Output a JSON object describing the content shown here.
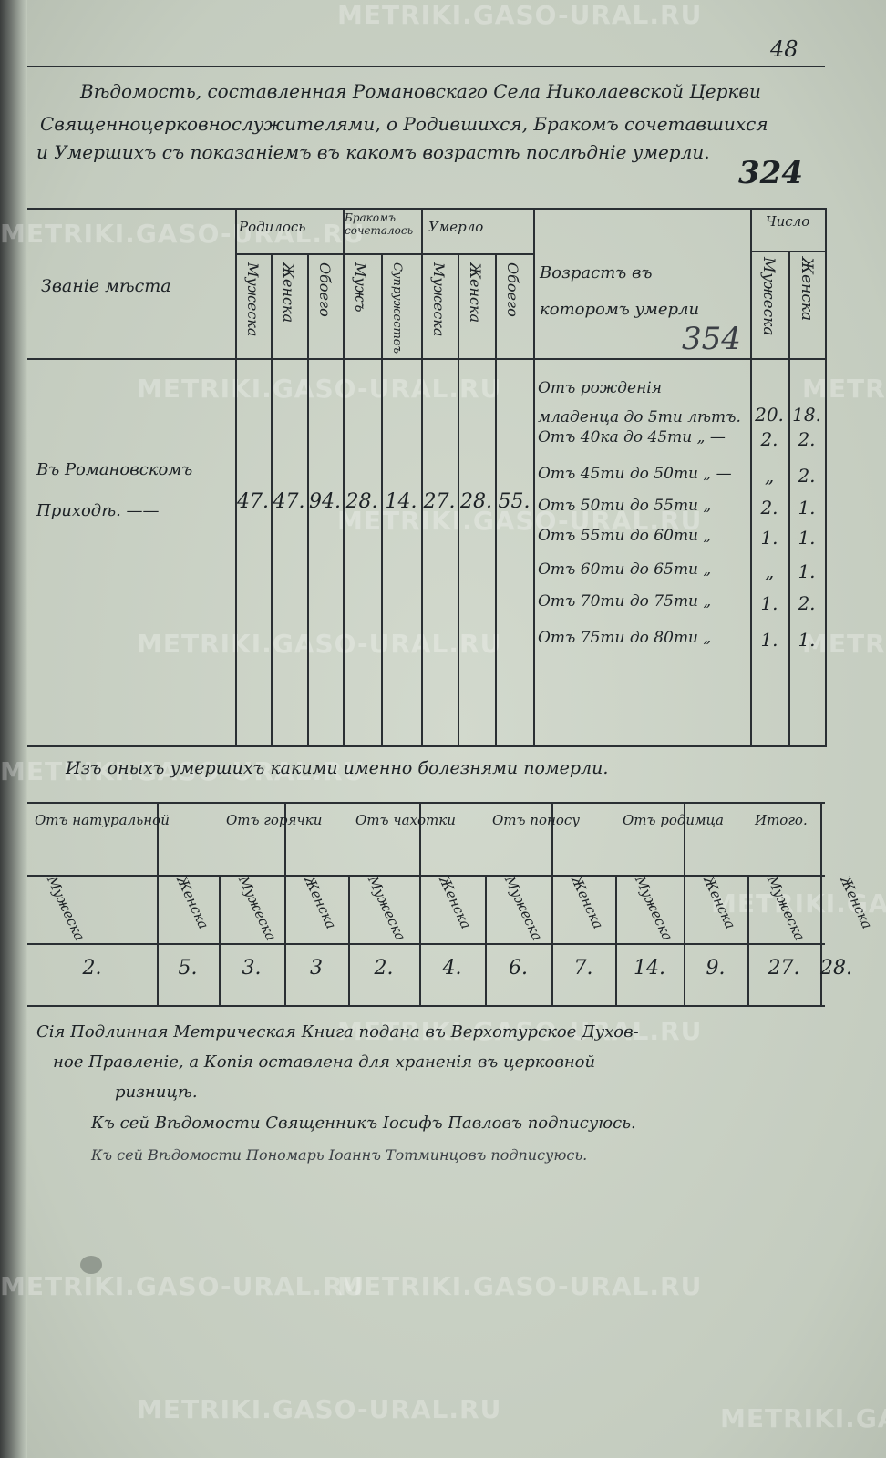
{
  "page_number": "48",
  "annotations": {
    "top": "324",
    "middle": "354"
  },
  "watermark": "METRIKI.GASO-URAL.RU",
  "title_lines": [
    "Вѣдомость, составленная Романовскаго Села Николаевской Церкви",
    "Священноцерковнослужителями, о Родившихся, Бракомъ сочетавшихся",
    "и Умершихъ съ показаніемъ въ какомъ возрастѣ послѣдніе умерли."
  ],
  "table1": {
    "place_header": "Званіе мѣста",
    "groups": {
      "born": "Родилось",
      "married": "Бракомъ сочеталось",
      "died": "Умерло",
      "count": "Число"
    },
    "subheaders": [
      "Мужеска",
      "Женска",
      "Обоего",
      "Мужъ",
      "Супружествъ",
      "Мужеска",
      "Женска",
      "Обоего"
    ],
    "age_header": "Возрастъ въ которомъ умерли",
    "count_subheaders": [
      "Мужеска",
      "Женска"
    ],
    "place": [
      "Въ Романовскомъ",
      "Приходѣ. ——"
    ],
    "values": [
      "47.",
      "47.",
      "94.",
      "28.",
      "14.",
      "27.",
      "28.",
      "55."
    ],
    "ages": [
      {
        "label": "Отъ рожденія младенца до 5ти лѣтъ.",
        "male": "20.",
        "female": "18."
      },
      {
        "label": "Отъ 40ка до 45ти „ —",
        "male": "2.",
        "female": "2."
      },
      {
        "label": "Отъ 45ти до 50ти „ —",
        "male": "„",
        "female": "2."
      },
      {
        "label": "Отъ 50ти до 55ти „",
        "male": "2.",
        "female": "1."
      },
      {
        "label": "Отъ 55ти до 60ти „",
        "male": "1.",
        "female": "1."
      },
      {
        "label": "Отъ 60ти до 65ти „",
        "male": "„",
        "female": "1."
      },
      {
        "label": "Отъ 70ти до 75ти „",
        "male": "1.",
        "female": "2."
      },
      {
        "label": "Отъ 75ти до 80ти „",
        "male": "1.",
        "female": "1."
      }
    ]
  },
  "causes_intro": "Изъ оныхъ умершихъ какими именно болезнями померли.",
  "table2": {
    "causes": [
      "Отъ натуральной",
      "Отъ горячки",
      "Отъ чахотки",
      "Отъ поносу",
      "Отъ родимца",
      "Итого."
    ],
    "sex": [
      "Мужеска",
      "Женска"
    ],
    "values": [
      "2.",
      "5.",
      "3.",
      "3",
      "2.",
      "4.",
      "6.",
      "7.",
      "14.",
      "9.",
      "27.",
      "28."
    ]
  },
  "footer": {
    "note_lines": [
      "Сія Подлинная Метрическая Книга подана въ Верхотурское Духов-",
      "ное Правленіе, а Копія оставлена для храненія въ церковной",
      "ризницѣ."
    ],
    "signatures": [
      "Къ сей Вѣдомости Священникъ Іосифъ Павловъ подписуюсь.",
      "Къ сей Вѣдомости Пономарь Іоаннъ Тотминцовъ подписуюсь."
    ]
  }
}
